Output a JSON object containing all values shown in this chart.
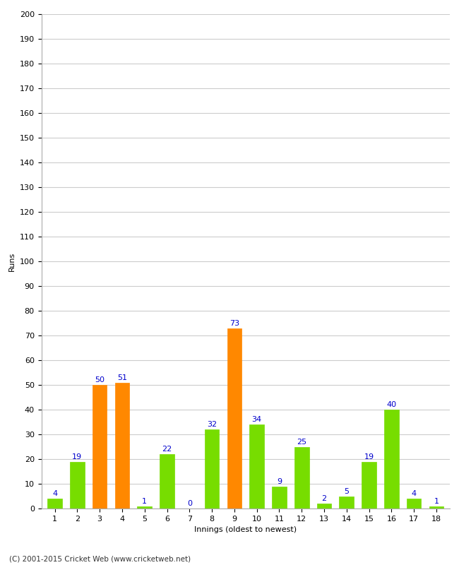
{
  "xlabel": "Innings (oldest to newest)",
  "ylabel": "Runs",
  "categories": [
    1,
    2,
    3,
    4,
    5,
    6,
    7,
    8,
    9,
    10,
    11,
    12,
    13,
    14,
    15,
    16,
    17,
    18
  ],
  "values": [
    4,
    19,
    50,
    51,
    1,
    22,
    0,
    32,
    73,
    34,
    9,
    25,
    2,
    5,
    19,
    40,
    4,
    1
  ],
  "colors": [
    "#77dd00",
    "#77dd00",
    "#ff8800",
    "#ff8800",
    "#77dd00",
    "#77dd00",
    "#77dd00",
    "#77dd00",
    "#ff8800",
    "#77dd00",
    "#77dd00",
    "#77dd00",
    "#77dd00",
    "#77dd00",
    "#77dd00",
    "#77dd00",
    "#77dd00",
    "#77dd00"
  ],
  "ylim": [
    0,
    200
  ],
  "yticks": [
    0,
    10,
    20,
    30,
    40,
    50,
    60,
    70,
    80,
    90,
    100,
    110,
    120,
    130,
    140,
    150,
    160,
    170,
    180,
    190,
    200
  ],
  "label_color": "#0000cc",
  "label_fontsize": 8,
  "axis_fontsize": 8,
  "footer": "(C) 2001-2015 Cricket Web (www.cricketweb.net)",
  "bg_color": "#ffffff",
  "plot_bg_color": "#ffffff",
  "grid_color": "#cccccc",
  "bar_width": 0.65
}
